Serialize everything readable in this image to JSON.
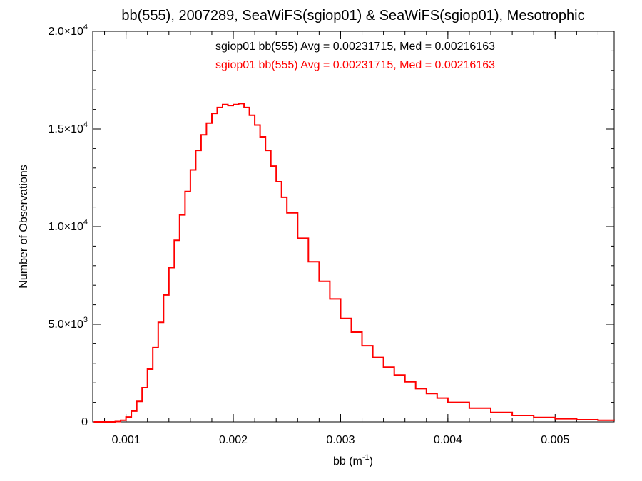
{
  "chart_data": {
    "type": "line",
    "title": "bb(555), 2007289, SeaWiFS(sgiop01) & SeaWiFS(sgiop01), Mesotrophic",
    "xlabel_base": "bb (m",
    "xlabel_exp": "-1",
    "xlabel_close": ")",
    "ylabel": "Number of Observations",
    "xlim": [
      0.00069,
      0.00555
    ],
    "ylim": [
      0,
      20000
    ],
    "grid": false,
    "x_ticks": [
      {
        "value": 0.001,
        "label": "0.001"
      },
      {
        "value": 0.002,
        "label": "0.002"
      },
      {
        "value": 0.003,
        "label": "0.003"
      },
      {
        "value": 0.004,
        "label": "0.004"
      },
      {
        "value": 0.005,
        "label": "0.005"
      }
    ],
    "x_minor_step": 0.0002,
    "y_ticks": [
      {
        "value": 0,
        "mant": "0",
        "exp": ""
      },
      {
        "value": 5000,
        "mant": "5.0×10",
        "exp": "3"
      },
      {
        "value": 10000,
        "mant": "1.0×10",
        "exp": "4"
      },
      {
        "value": 15000,
        "mant": "1.5×10",
        "exp": "4"
      },
      {
        "value": 20000,
        "mant": "2.0×10",
        "exp": "4"
      }
    ],
    "y_minor_step": 1000,
    "legend": [
      {
        "text": "sgiop01 bb(555) Avg = 0.00231715, Med = 0.00216163",
        "color": "#000000"
      },
      {
        "text": "sgiop01 bb(555) Avg = 0.00231715, Med = 0.00216163",
        "color": "#ff0000"
      }
    ],
    "series": [
      {
        "color": "#ff0000",
        "style": "step",
        "x": [
          0.0007,
          0.0008,
          0.0009,
          0.00095,
          0.001,
          0.00105,
          0.0011,
          0.00115,
          0.0012,
          0.00125,
          0.0013,
          0.00135,
          0.0014,
          0.00145,
          0.0015,
          0.00155,
          0.0016,
          0.00165,
          0.0017,
          0.00175,
          0.0018,
          0.00185,
          0.0019,
          0.00195,
          0.002,
          0.00205,
          0.0021,
          0.00215,
          0.0022,
          0.00225,
          0.0023,
          0.00235,
          0.0024,
          0.00245,
          0.0025,
          0.0026,
          0.0027,
          0.0028,
          0.0029,
          0.003,
          0.0031,
          0.0032,
          0.0033,
          0.0034,
          0.0035,
          0.0036,
          0.0037,
          0.0038,
          0.0039,
          0.004,
          0.0042,
          0.0044,
          0.0046,
          0.0048,
          0.005,
          0.0052,
          0.0054,
          0.00555
        ],
        "y": [
          0,
          0,
          20,
          80,
          250,
          550,
          1050,
          1750,
          2700,
          3800,
          5100,
          6500,
          7900,
          9300,
          10600,
          11800,
          12900,
          13900,
          14700,
          15300,
          15800,
          16100,
          16250,
          16200,
          16250,
          16300,
          16100,
          15700,
          15200,
          14600,
          13900,
          13100,
          12300,
          11500,
          10700,
          9400,
          8200,
          7200,
          6300,
          5300,
          4600,
          3900,
          3300,
          2800,
          2400,
          2050,
          1700,
          1450,
          1220,
          1000,
          700,
          480,
          330,
          230,
          160,
          110,
          80,
          60
        ]
      }
    ]
  }
}
